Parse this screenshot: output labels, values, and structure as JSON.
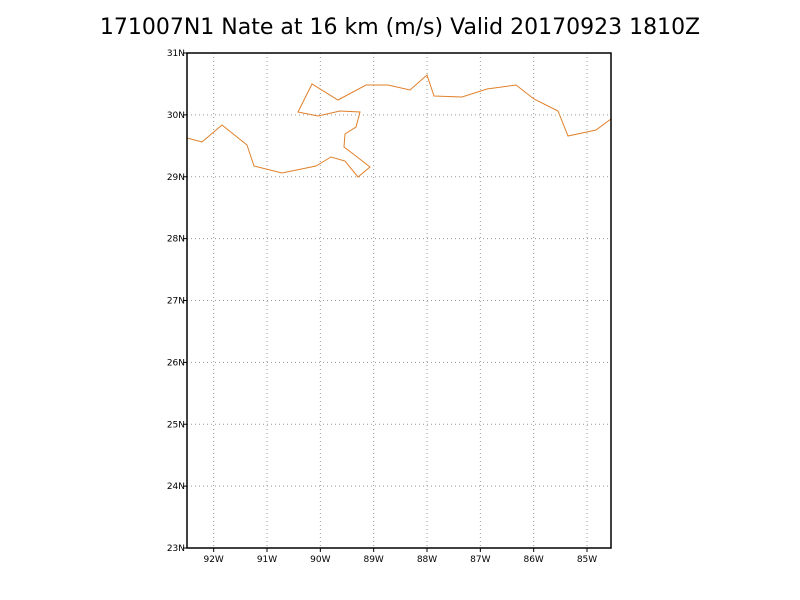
{
  "chart_data": {
    "type": "map",
    "title": "171007N1 Nate at 16 km (m/s) Valid 20170923 1810Z",
    "xlim": [
      -92.5,
      -84.55
    ],
    "ylim": [
      23,
      31
    ],
    "xticks": [
      {
        "value": -92,
        "label": "92W"
      },
      {
        "value": -91,
        "label": "91W"
      },
      {
        "value": -90,
        "label": "90W"
      },
      {
        "value": -89,
        "label": "89W"
      },
      {
        "value": -88,
        "label": "88W"
      },
      {
        "value": -87,
        "label": "87W"
      },
      {
        "value": -86,
        "label": "86W"
      },
      {
        "value": -85,
        "label": "85W"
      }
    ],
    "yticks": [
      {
        "value": 23,
        "label": "23N"
      },
      {
        "value": 24,
        "label": "24N"
      },
      {
        "value": 25,
        "label": "25N"
      },
      {
        "value": 26,
        "label": "26N"
      },
      {
        "value": 27,
        "label": "27N"
      },
      {
        "value": 28,
        "label": "28N"
      },
      {
        "value": 29,
        "label": "29N"
      },
      {
        "value": 30,
        "label": "30N"
      },
      {
        "value": 31,
        "label": "31N"
      }
    ],
    "grid": true,
    "coast_color": "#e0802a"
  }
}
